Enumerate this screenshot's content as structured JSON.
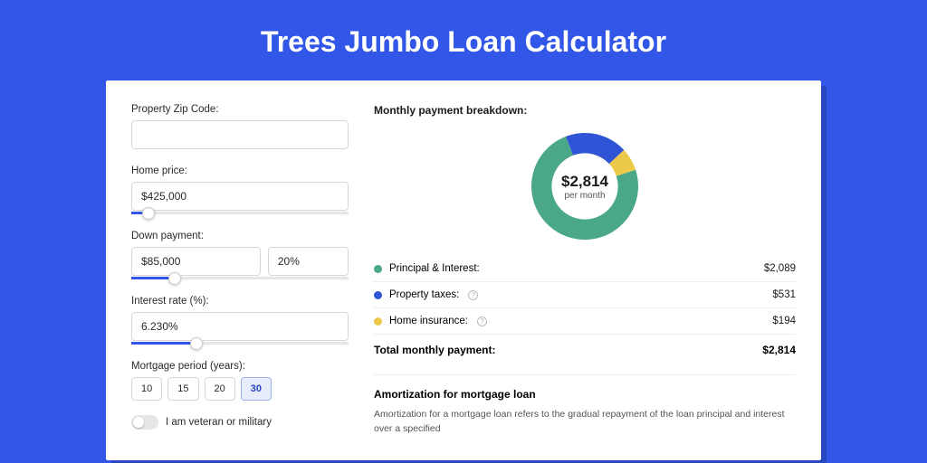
{
  "page": {
    "title": "Trees Jumbo Loan Calculator",
    "background_color": "#3257e8",
    "card_shadow_color": "#2a47c2"
  },
  "form": {
    "zip": {
      "label": "Property Zip Code:",
      "value": ""
    },
    "home_price": {
      "label": "Home price:",
      "value": "$425,000",
      "slider_pct": 8
    },
    "down_payment": {
      "label": "Down payment:",
      "value": "$85,000",
      "pct_value": "20%",
      "slider_pct": 20
    },
    "interest_rate": {
      "label": "Interest rate (%):",
      "value": "6.230%",
      "slider_pct": 30
    },
    "mortgage_period": {
      "label": "Mortgage period (years):",
      "options": [
        "10",
        "15",
        "20",
        "30"
      ],
      "selected": "30"
    },
    "veteran": {
      "label": "I am veteran or military",
      "checked": false
    }
  },
  "breakdown": {
    "title": "Monthly payment breakdown:",
    "center_amount": "$2,814",
    "center_sub": "per month",
    "donut": {
      "type": "donut",
      "size": 118,
      "inner_radius_pct": 62,
      "start_angle_deg": -18,
      "slices": [
        {
          "label": "Principal & Interest",
          "value": 2089,
          "color": "#4aa888"
        },
        {
          "label": "Property taxes",
          "value": 531,
          "color": "#2f55d6"
        },
        {
          "label": "Home insurance",
          "value": 194,
          "color": "#ecc94b"
        }
      ]
    },
    "rows": [
      {
        "dot_color": "#4aa888",
        "label": "Principal & Interest:",
        "info": false,
        "value": "$2,089"
      },
      {
        "dot_color": "#2f55d6",
        "label": "Property taxes:",
        "info": true,
        "value": "$531"
      },
      {
        "dot_color": "#ecc94b",
        "label": "Home insurance:",
        "info": true,
        "value": "$194"
      }
    ],
    "total_label": "Total monthly payment:",
    "total_value": "$2,814"
  },
  "amortization": {
    "title": "Amortization for mortgage loan",
    "text": "Amortization for a mortgage loan refers to the gradual repayment of the loan principal and interest over a specified"
  }
}
